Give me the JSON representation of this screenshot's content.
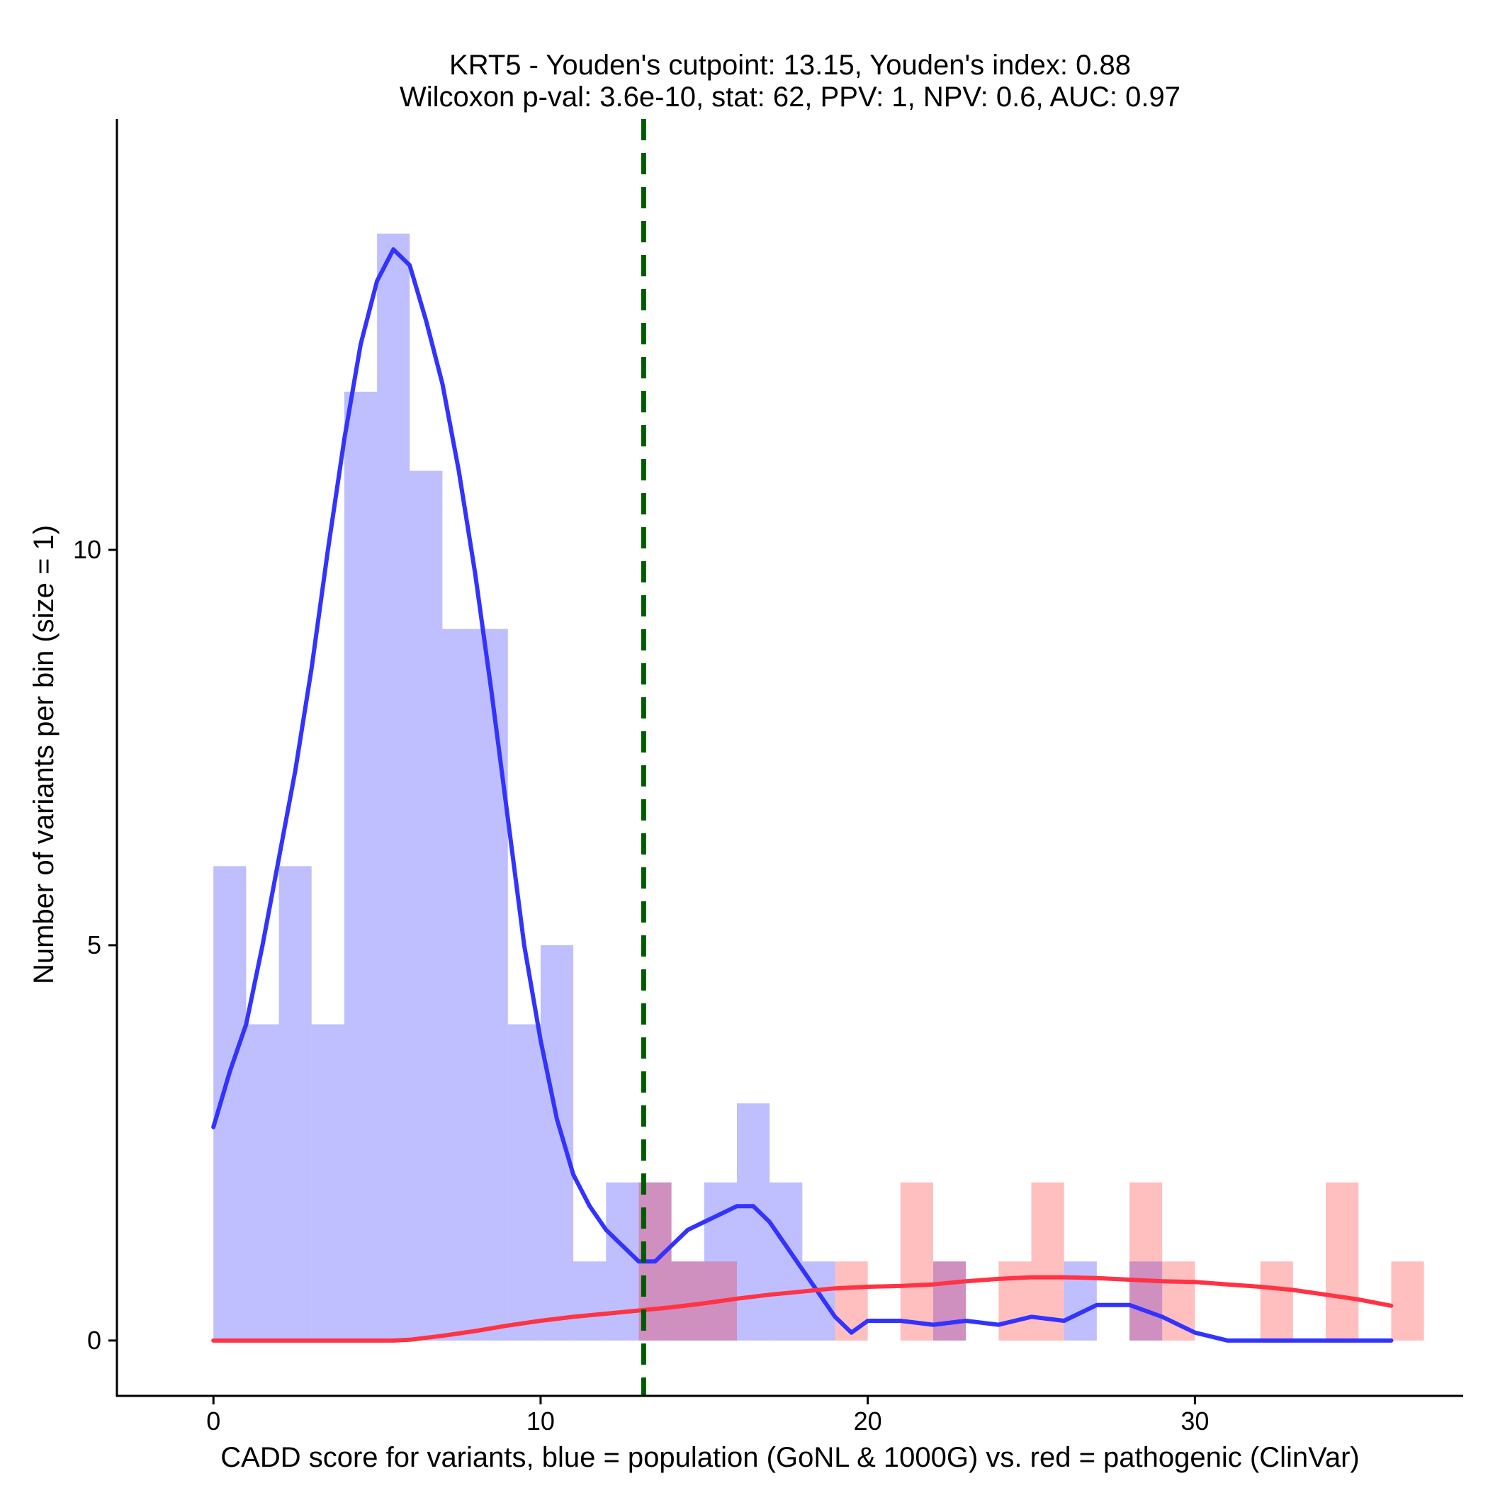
{
  "chart_data": {
    "type": "bar",
    "title": "KRT5 - Youden's cutpoint: 13.15, Youden's index: 0.88",
    "subtitle": "Wilcoxon p-val: 3.6e-10, stat: 62, PPV: 1, NPV: 0.6, AUC: 0.97",
    "xlabel": "CADD score for variants, blue = population (GoNL & 1000G) vs. red = pathogenic (ClinVar)",
    "ylabel": "Number of variants per bin (size = 1)",
    "xlim": [
      -2.95,
      38.2
    ],
    "ylim": [
      -0.7,
      15.7
    ],
    "x_ticks": [
      0,
      10,
      20,
      30
    ],
    "x_tick_labels": [
      "0",
      "10",
      "20",
      "30"
    ],
    "y_ticks": [
      0,
      5,
      10
    ],
    "y_tick_labels": [
      "0",
      "5",
      "10"
    ],
    "grid": false,
    "bin_width": 1,
    "cutpoint": 13.15,
    "series": [
      {
        "name": "population (GoNL & 1000G)",
        "color": "#0000ff",
        "bin_starts": [
          0,
          1,
          2,
          3,
          4,
          5,
          6,
          7,
          8,
          9,
          10,
          11,
          12,
          13,
          14,
          15,
          16,
          17,
          18,
          19,
          20,
          21,
          22,
          23,
          24,
          25,
          26,
          27,
          28,
          29,
          30,
          31,
          32,
          33,
          34,
          35,
          36
        ],
        "values": [
          6,
          4,
          6,
          4,
          12,
          14,
          11,
          9,
          9,
          4,
          5,
          1,
          2,
          2,
          1,
          2,
          3,
          2,
          1,
          0,
          0,
          0,
          1,
          0,
          0,
          0,
          1,
          0,
          1,
          0,
          0,
          0,
          0,
          0,
          0,
          0,
          0
        ],
        "density_curve": {
          "x": [
            0,
            0.5,
            1,
            1.5,
            2,
            2.5,
            3,
            3.5,
            4,
            4.5,
            5,
            5.5,
            6,
            6.5,
            7,
            7.5,
            8,
            8.5,
            9,
            9.5,
            10,
            10.5,
            11,
            11.5,
            12,
            12.5,
            13,
            13.5,
            14,
            14.5,
            15,
            15.5,
            16,
            16.5,
            17,
            17.5,
            18,
            18.5,
            19,
            19.5,
            20,
            21,
            22,
            23,
            24,
            25,
            26,
            27,
            28,
            29,
            30,
            31,
            32,
            33,
            34,
            35,
            36
          ],
          "y": [
            2.7,
            3.4,
            4.0,
            5.0,
            6.1,
            7.2,
            8.5,
            10.0,
            11.4,
            12.6,
            13.4,
            13.8,
            13.6,
            12.9,
            12.1,
            11.0,
            9.7,
            8.2,
            6.6,
            5.0,
            3.8,
            2.8,
            2.1,
            1.7,
            1.4,
            1.2,
            1.0,
            1.0,
            1.2,
            1.4,
            1.5,
            1.6,
            1.7,
            1.7,
            1.5,
            1.2,
            0.9,
            0.6,
            0.3,
            0.1,
            0.25,
            0.25,
            0.2,
            0.25,
            0.2,
            0.3,
            0.25,
            0.45,
            0.45,
            0.3,
            0.1,
            0.0,
            0.0,
            0.0,
            0.0,
            0.0,
            0.0
          ]
        }
      },
      {
        "name": "pathogenic (ClinVar)",
        "color": "#ff0000",
        "bin_starts": [
          13,
          14,
          15,
          19,
          21,
          22,
          24,
          25,
          28,
          29,
          32,
          34,
          36
        ],
        "values": [
          2,
          1,
          1,
          1,
          2,
          1,
          1,
          2,
          2,
          1,
          1,
          2,
          1
        ],
        "density_curve": {
          "x": [
            0,
            2,
            4,
            5.5,
            6,
            7,
            8,
            9,
            10,
            11,
            12,
            13,
            14,
            15,
            16,
            17,
            18,
            19,
            20,
            21,
            22,
            23,
            24,
            25,
            26,
            27,
            28,
            29,
            30,
            31,
            32,
            33,
            34,
            35,
            36
          ],
          "y": [
            0,
            0,
            0,
            0,
            0.01,
            0.06,
            0.12,
            0.19,
            0.25,
            0.3,
            0.34,
            0.38,
            0.42,
            0.47,
            0.53,
            0.58,
            0.62,
            0.66,
            0.68,
            0.69,
            0.71,
            0.75,
            0.78,
            0.8,
            0.8,
            0.79,
            0.77,
            0.75,
            0.74,
            0.71,
            0.68,
            0.64,
            0.58,
            0.52,
            0.44
          ]
        }
      }
    ]
  }
}
